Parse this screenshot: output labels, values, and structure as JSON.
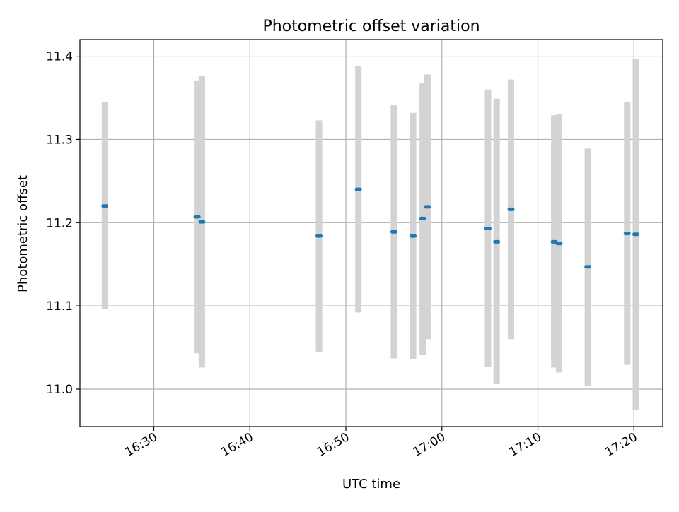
{
  "chart_data": {
    "type": "scatter",
    "title": "Photometric offset variation",
    "xlabel": "UTC time",
    "ylabel": "Photometric offset",
    "x_ticks": [
      "16:30",
      "16:40",
      "16:50",
      "17:00",
      "17:10",
      "17:20"
    ],
    "x_tick_minutes": [
      30,
      40,
      50,
      60,
      70,
      80
    ],
    "y_ticks": [
      "11.0",
      "11.1",
      "11.2",
      "11.3",
      "11.4"
    ],
    "y_tick_values": [
      11.0,
      11.1,
      11.2,
      11.3,
      11.4
    ],
    "xlim_minutes": [
      22.3,
      83.0
    ],
    "ylim": [
      10.955,
      11.42
    ],
    "grid": true,
    "colors": {
      "point": "#1f77b4",
      "errorbar": "#d3d3d3",
      "grid": "#b0b0b0"
    },
    "points": [
      {
        "t": 24.9,
        "y": 11.22,
        "low": 11.096,
        "high": 11.345
      },
      {
        "t": 34.5,
        "y": 11.207,
        "low": 11.043,
        "high": 11.371
      },
      {
        "t": 35.0,
        "y": 11.201,
        "low": 11.026,
        "high": 11.376
      },
      {
        "t": 47.2,
        "y": 11.184,
        "low": 11.045,
        "high": 11.323
      },
      {
        "t": 51.3,
        "y": 11.24,
        "low": 11.092,
        "high": 11.388
      },
      {
        "t": 55.0,
        "y": 11.189,
        "low": 11.037,
        "high": 11.341
      },
      {
        "t": 57.0,
        "y": 11.184,
        "low": 11.036,
        "high": 11.332
      },
      {
        "t": 58.0,
        "y": 11.205,
        "low": 11.041,
        "high": 11.368
      },
      {
        "t": 58.5,
        "y": 11.219,
        "low": 11.06,
        "high": 11.378
      },
      {
        "t": 64.8,
        "y": 11.193,
        "low": 11.027,
        "high": 11.36
      },
      {
        "t": 65.7,
        "y": 11.177,
        "low": 11.006,
        "high": 11.349
      },
      {
        "t": 67.2,
        "y": 11.216,
        "low": 11.06,
        "high": 11.372
      },
      {
        "t": 71.7,
        "y": 11.177,
        "low": 11.026,
        "high": 11.329
      },
      {
        "t": 72.2,
        "y": 11.175,
        "low": 11.02,
        "high": 11.33
      },
      {
        "t": 75.2,
        "y": 11.147,
        "low": 11.004,
        "high": 11.289
      },
      {
        "t": 79.3,
        "y": 11.187,
        "low": 11.029,
        "high": 11.345
      },
      {
        "t": 80.2,
        "y": 11.186,
        "low": 10.975,
        "high": 11.397
      }
    ]
  }
}
